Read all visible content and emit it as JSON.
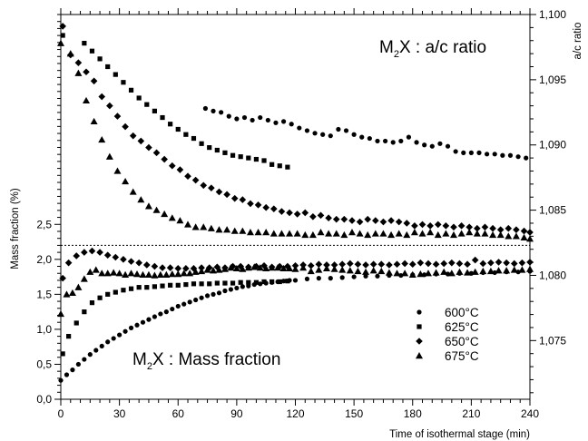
{
  "chart_data": {
    "type": "scatter",
    "xlabel": "Time of isothermal stage (min)",
    "ylabel": "Mass fraction (%)",
    "y2label": "a/c ratio",
    "xlim": [
      0,
      240
    ],
    "xticks": [
      "0",
      "30",
      "60",
      "90",
      "120",
      "150",
      "180",
      "210",
      "240"
    ],
    "ylim": [
      0,
      5.5
    ],
    "yticks": [
      "0,0",
      "0,5",
      "1,0",
      "1,5",
      "2,0",
      "2,5"
    ],
    "y2lim": [
      1.0705,
      1.1
    ],
    "y2ticks": [
      "1,075",
      "1,080",
      "1,085",
      "1,090",
      "1,095",
      "1,100"
    ],
    "grid": false,
    "legend_position": "right-lower",
    "divider_line": {
      "axis": "left",
      "value": 2.2,
      "style": "dotted"
    },
    "annotations": {
      "top_main": "M",
      "top_sub": "2",
      "top_rest": "X : a/c ratio",
      "bottom_main": "M",
      "bottom_sub": "2",
      "bottom_rest": "X : Mass fraction"
    },
    "series": [
      {
        "name": "600°C",
        "marker": "circle",
        "mass_fraction": {
          "x": [
            0,
            3,
            6,
            9,
            12,
            15,
            18,
            21,
            24,
            27,
            30,
            33,
            36,
            39,
            42,
            45,
            48,
            51,
            54,
            57,
            60,
            63,
            66,
            69,
            72,
            75,
            78,
            81,
            84,
            87,
            90,
            93,
            96,
            99,
            102,
            105,
            108,
            111,
            114,
            117,
            120,
            126,
            132,
            138,
            144,
            150,
            156,
            162,
            168,
            174,
            180,
            186,
            192,
            198,
            204,
            210,
            216,
            222,
            228,
            234,
            240
          ],
          "y": [
            0.27,
            0.35,
            0.42,
            0.5,
            0.57,
            0.64,
            0.7,
            0.76,
            0.82,
            0.87,
            0.92,
            0.97,
            1.02,
            1.06,
            1.1,
            1.14,
            1.18,
            1.22,
            1.25,
            1.29,
            1.33,
            1.36,
            1.39,
            1.42,
            1.45,
            1.48,
            1.5,
            1.52,
            1.55,
            1.57,
            1.59,
            1.61,
            1.62,
            1.64,
            1.65,
            1.66,
            1.67,
            1.68,
            1.69,
            1.7,
            1.7,
            1.72,
            1.73,
            1.73,
            1.74,
            1.75,
            1.76,
            1.76,
            1.77,
            1.77,
            1.78,
            1.78,
            1.79,
            1.79,
            1.8,
            1.8,
            1.81,
            1.81,
            1.82,
            1.82,
            1.83
          ]
        },
        "ac_ratio": {
          "x": [
            74,
            78,
            82,
            86,
            90,
            94,
            98,
            102,
            106,
            110,
            114,
            118,
            122,
            126,
            130,
            134,
            138,
            142,
            146,
            150,
            154,
            158,
            162,
            166,
            170,
            174,
            178,
            182,
            186,
            190,
            194,
            198,
            202,
            206,
            210,
            214,
            218,
            222,
            226,
            230,
            234,
            238
          ],
          "y": [
            1.0928,
            1.0926,
            1.0925,
            1.0922,
            1.092,
            1.0921,
            1.0919,
            1.0921,
            1.0919,
            1.0917,
            1.0918,
            1.0916,
            1.0913,
            1.0911,
            1.0909,
            1.0908,
            1.0907,
            1.0912,
            1.0911,
            1.0908,
            1.0906,
            1.0905,
            1.0903,
            1.0903,
            1.0902,
            1.0903,
            1.0906,
            1.0902,
            1.09,
            1.0899,
            1.0901,
            1.0899,
            1.0895,
            1.0894,
            1.0894,
            1.0894,
            1.0893,
            1.0893,
            1.0892,
            1.0892,
            1.0891,
            1.089
          ]
        }
      },
      {
        "name": "625°C",
        "marker": "square",
        "mass_fraction": {
          "x": [
            1,
            4,
            8,
            12,
            16,
            20,
            24,
            28,
            32,
            36,
            40,
            44,
            48,
            52,
            56,
            60,
            64,
            68,
            72,
            76,
            80,
            84,
            88,
            92,
            96,
            100,
            104,
            108,
            112,
            116
          ],
          "y": [
            0.65,
            0.9,
            1.09,
            1.25,
            1.38,
            1.45,
            1.5,
            1.53,
            1.56,
            1.58,
            1.6,
            1.6,
            1.61,
            1.62,
            1.63,
            1.63,
            1.64,
            1.65,
            1.65,
            1.65,
            1.66,
            1.66,
            1.66,
            1.67,
            1.67,
            1.67,
            1.68,
            1.68,
            1.68,
            1.69
          ]
        },
        "ac_ratio": {
          "x": [
            1,
            12,
            16,
            20,
            24,
            28,
            32,
            36,
            40,
            44,
            48,
            52,
            56,
            60,
            64,
            68,
            72,
            76,
            80,
            84,
            88,
            92,
            96,
            100,
            104,
            108,
            112,
            116
          ],
          "y": [
            1.0984,
            1.0978,
            1.0972,
            1.0966,
            1.096,
            1.0954,
            1.0948,
            1.0942,
            1.0936,
            1.0931,
            1.0926,
            1.0921,
            1.0916,
            1.0912,
            1.0908,
            1.0905,
            1.0901,
            1.0898,
            1.0896,
            1.0894,
            1.0892,
            1.0891,
            1.089,
            1.0889,
            1.0888,
            1.0885,
            1.0884,
            1.0883
          ]
        }
      },
      {
        "name": "650°C",
        "marker": "diamond",
        "mass_fraction": {
          "x": [
            1,
            4,
            8,
            12,
            16,
            20,
            24,
            28,
            32,
            36,
            40,
            44,
            48,
            52,
            56,
            60,
            64,
            68,
            72,
            76,
            80,
            84,
            88,
            92,
            96,
            100,
            104,
            108,
            112,
            116,
            120,
            124,
            128,
            132,
            136,
            140,
            144,
            148,
            152,
            156,
            160,
            164,
            168,
            172,
            176,
            180,
            184,
            188,
            192,
            196,
            200,
            204,
            208,
            212,
            216,
            220,
            224,
            228,
            232,
            236,
            240
          ],
          "y": [
            1.73,
            1.95,
            2.05,
            2.1,
            2.12,
            2.1,
            2.06,
            2.03,
            2.0,
            1.97,
            1.95,
            1.92,
            1.9,
            1.88,
            1.88,
            1.87,
            1.87,
            1.87,
            1.88,
            1.88,
            1.89,
            1.88,
            1.9,
            1.9,
            1.89,
            1.9,
            1.91,
            1.89,
            1.9,
            1.9,
            1.91,
            1.92,
            1.91,
            1.93,
            1.92,
            1.92,
            1.93,
            1.94,
            1.93,
            1.92,
            1.93,
            1.93,
            1.92,
            1.93,
            1.94,
            1.93,
            1.95,
            1.94,
            1.93,
            1.94,
            1.95,
            1.94,
            1.93,
            1.99,
            1.94,
            1.95,
            1.96,
            1.95,
            1.94,
            1.95,
            1.96
          ]
        },
        "ac_ratio": {
          "x": [
            1,
            5,
            9,
            13,
            17,
            21,
            25,
            29,
            33,
            37,
            41,
            45,
            49,
            53,
            57,
            61,
            65,
            69,
            73,
            77,
            81,
            85,
            89,
            93,
            97,
            101,
            105,
            109,
            113,
            117,
            121,
            125,
            129,
            133,
            137,
            141,
            145,
            149,
            153,
            157,
            161,
            165,
            169,
            173,
            177,
            181,
            185,
            189,
            193,
            197,
            201,
            205,
            209,
            213,
            217,
            221,
            225,
            229,
            233,
            237,
            240
          ],
          "y": [
            1.0991,
            1.0969,
            1.0963,
            1.0956,
            1.0949,
            1.0937,
            1.093,
            1.0922,
            1.0914,
            1.0907,
            1.0903,
            1.0898,
            1.0894,
            1.0889,
            1.0884,
            1.0881,
            1.0876,
            1.0873,
            1.0869,
            1.0867,
            1.0864,
            1.0862,
            1.0859,
            1.0858,
            1.0855,
            1.0854,
            1.0852,
            1.0851,
            1.0849,
            1.0848,
            1.0847,
            1.0848,
            1.0845,
            1.0846,
            1.0844,
            1.0843,
            1.0843,
            1.0842,
            1.0841,
            1.0843,
            1.0842,
            1.0841,
            1.0842,
            1.0841,
            1.084,
            1.0838,
            1.0839,
            1.0838,
            1.0839,
            1.0838,
            1.0837,
            1.0838,
            1.0837,
            1.0836,
            1.0837,
            1.0836,
            1.0835,
            1.0836,
            1.0835,
            1.0834,
            1.0833
          ]
        }
      },
      {
        "name": "675°C",
        "marker": "triangle",
        "mass_fraction": {
          "x": [
            0,
            3,
            6,
            9,
            12,
            15,
            18,
            21,
            24,
            27,
            30,
            33,
            36,
            39,
            42,
            45,
            48,
            51,
            54,
            57,
            60,
            63,
            66,
            69,
            72,
            75,
            78,
            81,
            84,
            87,
            90,
            93,
            96,
            99,
            102,
            105,
            108,
            111,
            114,
            117,
            120,
            124,
            128,
            132,
            136,
            140,
            144,
            148,
            152,
            156,
            160,
            164,
            168,
            172,
            176,
            180,
            184,
            188,
            192,
            196,
            200,
            204,
            208,
            212,
            216,
            220,
            224,
            228,
            232,
            236,
            240
          ],
          "y": [
            1.22,
            1.5,
            1.52,
            1.6,
            1.72,
            1.82,
            1.85,
            1.8,
            1.8,
            1.81,
            1.8,
            1.78,
            1.8,
            1.79,
            1.78,
            1.78,
            1.77,
            1.78,
            1.78,
            1.79,
            1.79,
            1.8,
            1.8,
            1.82,
            1.83,
            1.85,
            1.84,
            1.85,
            1.86,
            1.88,
            1.87,
            1.86,
            1.88,
            1.89,
            1.88,
            1.87,
            1.88,
            1.88,
            1.87,
            1.87,
            1.86,
            1.88,
            1.83,
            1.85,
            1.87,
            1.86,
            1.85,
            1.84,
            1.83,
            1.82,
            1.84,
            1.83,
            1.81,
            1.8,
            1.8,
            1.78,
            1.79,
            1.8,
            1.81,
            1.82,
            1.8,
            1.82,
            1.81,
            1.82,
            1.83,
            1.83,
            1.84,
            1.84,
            1.85,
            1.85,
            1.86
          ]
        },
        "ac_ratio": {
          "x": [
            0,
            5,
            9,
            13,
            17,
            21,
            25,
            29,
            33,
            37,
            41,
            45,
            49,
            53,
            57,
            61,
            65,
            69,
            73,
            77,
            81,
            85,
            89,
            93,
            97,
            101,
            105,
            109,
            113,
            117,
            121,
            125,
            129,
            133,
            137,
            141,
            145,
            149,
            153,
            157,
            161,
            165,
            169,
            173,
            177,
            181,
            185,
            189,
            193,
            197,
            201,
            205,
            209,
            213,
            217,
            221,
            225,
            229,
            233,
            237,
            240
          ],
          "y": [
            1.0978,
            1.097,
            1.0955,
            1.0934,
            1.0918,
            1.0904,
            1.0891,
            1.088,
            1.0872,
            1.0864,
            1.0858,
            1.0853,
            1.085,
            1.0847,
            1.0844,
            1.0842,
            1.0839,
            1.0837,
            1.0837,
            1.0836,
            1.0835,
            1.0835,
            1.0834,
            1.0834,
            1.0833,
            1.0833,
            1.0833,
            1.0832,
            1.0832,
            1.0832,
            1.0832,
            1.0831,
            1.0831,
            1.0833,
            1.0832,
            1.0832,
            1.0831,
            1.0833,
            1.0832,
            1.0831,
            1.0832,
            1.0832,
            1.0831,
            1.0832,
            1.0831,
            1.0833,
            1.0832,
            1.0833,
            1.0831,
            1.0832,
            1.0831,
            1.0832,
            1.0833,
            1.0832,
            1.0832,
            1.0831,
            1.0831,
            1.083,
            1.083,
            1.0829,
            1.0828
          ]
        }
      }
    ]
  }
}
